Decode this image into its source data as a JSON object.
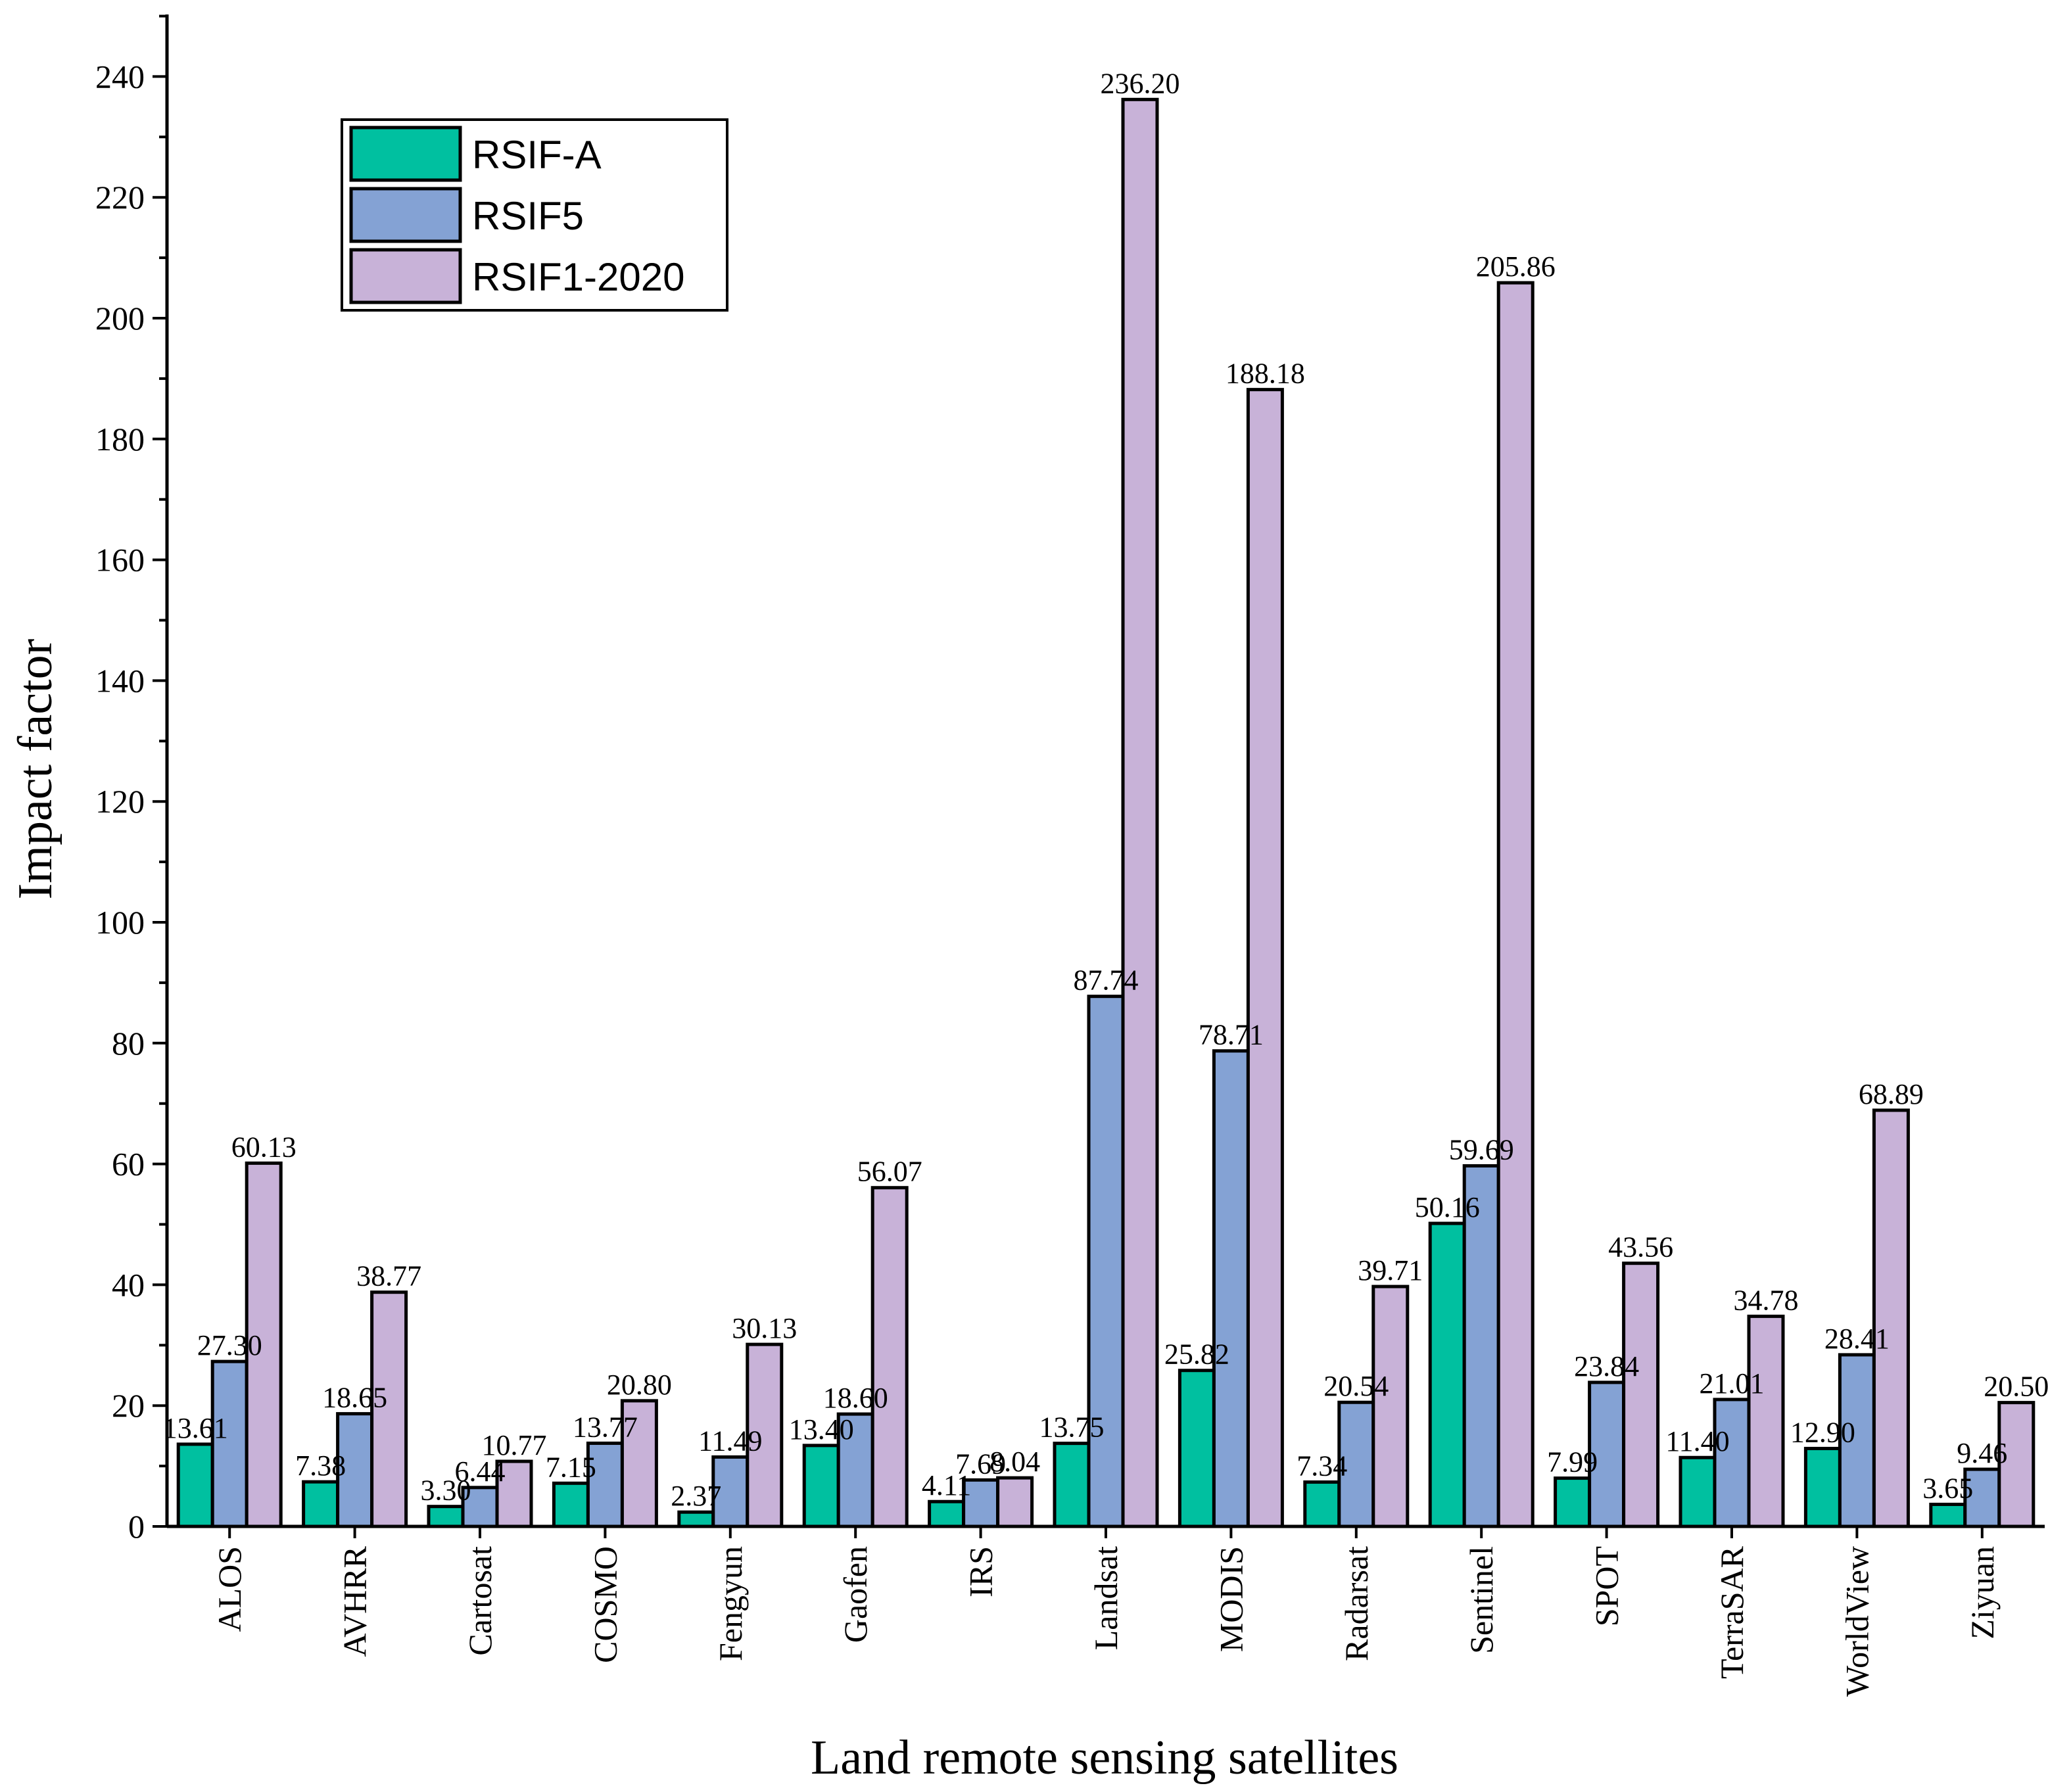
{
  "chart_data": {
    "type": "bar",
    "title": "",
    "xlabel": "Land remote sensing satellites",
    "ylabel": "Impact factor",
    "ylim": [
      0,
      250
    ],
    "yticks": [
      0,
      20,
      40,
      60,
      80,
      100,
      120,
      140,
      160,
      180,
      200,
      220,
      240
    ],
    "grid": false,
    "legend_position": "top-left",
    "categories": [
      "ALOS",
      "AVHRR",
      "Cartosat",
      "COSMO",
      "Fengyun",
      "Gaofen",
      "IRS",
      "Landsat",
      "MODIS",
      "Radarsat",
      "Sentinel",
      "SPOT",
      "TerraSAR",
      "WorldView",
      "Ziyuan"
    ],
    "series": [
      {
        "name": "RSIF-A",
        "color": "#00c0a0",
        "values": [
          13.61,
          7.38,
          3.3,
          7.15,
          2.37,
          13.4,
          4.11,
          13.75,
          25.82,
          7.34,
          50.16,
          7.99,
          11.4,
          12.9,
          3.65
        ],
        "labels": [
          "13.61",
          "7.38",
          "3.30",
          "7.15",
          "2.37",
          "13.40",
          "4.11",
          "13.75",
          "25.82",
          "7.34",
          "50.16",
          "7.99",
          "11.40",
          "12.90",
          "3.65"
        ]
      },
      {
        "name": "RSIF5",
        "color": "#84a2d4",
        "values": [
          27.3,
          18.65,
          6.44,
          13.77,
          11.49,
          18.6,
          7.69,
          87.74,
          78.71,
          20.54,
          59.69,
          23.84,
          21.01,
          28.41,
          9.46
        ],
        "labels": [
          "27.30",
          "18.65",
          "6.44",
          "13.77",
          "11.49",
          "18.60",
          "7.69",
          "87.74",
          "78.71",
          "20.54",
          "59.69",
          "23.84",
          "21.01",
          "28.41",
          "9.46"
        ]
      },
      {
        "name": "RSIF1-2020",
        "color": "#c8b2d8",
        "values": [
          60.13,
          38.77,
          10.77,
          20.8,
          30.13,
          56.07,
          8.04,
          236.2,
          188.18,
          39.71,
          205.86,
          43.56,
          34.78,
          68.89,
          20.5
        ],
        "labels": [
          "60.13",
          "38.77",
          "10.77",
          "20.80",
          "30.13",
          "56.07",
          "8.04",
          "236.20",
          "188.18",
          "39.71",
          "205.86",
          "43.56",
          "34.78",
          "68.89",
          "20.50"
        ]
      }
    ]
  }
}
